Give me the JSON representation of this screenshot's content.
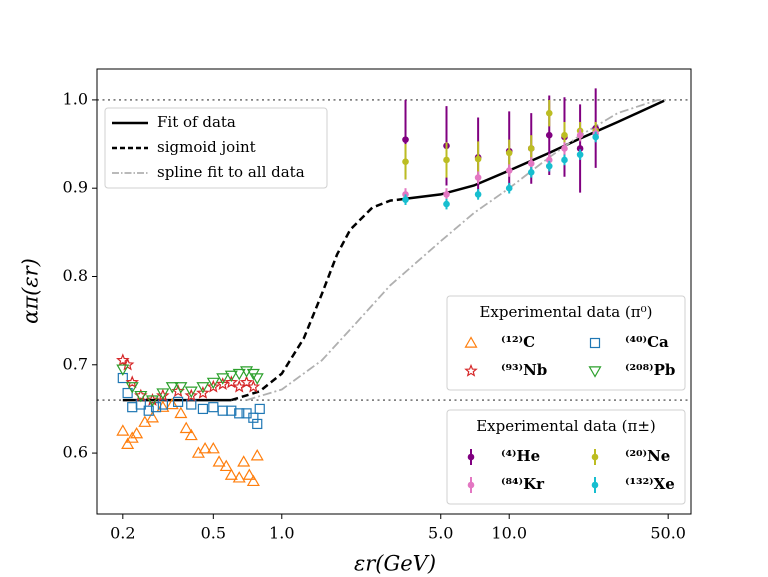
{
  "chart_data": {
    "type": "scatter",
    "x_label": "εr(GeV)",
    "y_label": "απ(εr)",
    "xscale": "log",
    "xlim": [
      0.154,
      63
    ],
    "ylim": [
      0.531,
      1.035
    ],
    "xticks": [
      0.2,
      0.5,
      {
        "value": 1,
        "label": "1.0"
      },
      {
        "value": 5,
        "label": "5.0"
      },
      {
        "value": 10,
        "label": "10.0"
      },
      {
        "value": 50,
        "label": "50.0"
      }
    ],
    "yticks": [
      0.6,
      0.7,
      0.8,
      0.9,
      {
        "value": 1,
        "label": "1.0"
      }
    ],
    "hlines": [
      1.0,
      0.66
    ],
    "fits": {
      "series": [
        {
          "name": "Fit of data",
          "color": "#000000",
          "dash": "solid",
          "x": [
            0.2,
            0.4,
            0.6,
            2.0,
            3.5,
            5,
            7,
            10,
            15,
            20,
            30,
            48
          ],
          "values": [
            0.66,
            0.66,
            0.66,
            null,
            0.888,
            0.893,
            0.903,
            0.92,
            0.94,
            0.955,
            0.975,
            0.999
          ]
        },
        {
          "name": "sigmoid joint",
          "color": "#000000",
          "dash": "dashed",
          "x": [
            0.6,
            0.8,
            1.0,
            1.25,
            1.5,
            1.75,
            2.0,
            2.5,
            3.0,
            3.5
          ],
          "values": [
            0.66,
            0.67,
            0.69,
            0.73,
            0.78,
            0.825,
            0.853,
            0.878,
            0.886,
            0.888
          ]
        },
        {
          "name": "spline fit to all data",
          "color": "#b0b0b0",
          "dash": "dashdot",
          "x": [
            0.7,
            1.0,
            1.5,
            2.0,
            3.0,
            5.0,
            7.0,
            10,
            15,
            20,
            30,
            45,
            50
          ],
          "values": [
            0.66,
            0.672,
            0.705,
            0.74,
            0.79,
            0.84,
            0.872,
            0.9,
            0.935,
            0.958,
            0.985,
            1.0,
            1.0
          ]
        }
      ]
    },
    "pi0": {
      "title": "Experimental data (π⁰)",
      "series": [
        {
          "name": "⁽¹²⁾C",
          "color": "#ff7f0e",
          "marker": "triangle-up",
          "x": [
            0.2,
            0.21,
            0.22,
            0.23,
            0.25,
            0.27,
            0.3,
            0.33,
            0.36,
            0.38,
            0.4,
            0.43,
            0.46,
            0.5,
            0.53,
            0.57,
            0.6,
            0.65,
            0.68,
            0.72,
            0.75,
            0.78
          ],
          "values": [
            0.625,
            0.61,
            0.617,
            0.622,
            0.635,
            0.64,
            0.652,
            0.655,
            0.645,
            0.628,
            0.62,
            0.6,
            0.605,
            0.605,
            0.59,
            0.585,
            0.575,
            0.572,
            0.59,
            0.575,
            0.568,
            0.597
          ]
        },
        {
          "name": "⁽⁴⁰⁾Ca",
          "color": "#1f77b4",
          "marker": "square",
          "x": [
            0.2,
            0.21,
            0.22,
            0.24,
            0.26,
            0.28,
            0.3,
            0.35,
            0.4,
            0.45,
            0.5,
            0.55,
            0.6,
            0.65,
            0.7,
            0.75,
            0.78,
            0.8
          ],
          "values": [
            0.685,
            0.668,
            0.652,
            0.655,
            0.648,
            0.652,
            0.655,
            0.658,
            0.655,
            0.65,
            0.652,
            0.648,
            0.648,
            0.645,
            0.645,
            0.64,
            0.633,
            0.65
          ]
        },
        {
          "name": "⁽⁹³⁾Nb",
          "color": "#d62728",
          "marker": "star",
          "x": [
            0.2,
            0.21,
            0.22,
            0.24,
            0.27,
            0.3,
            0.35,
            0.4,
            0.45,
            0.5,
            0.55,
            0.6,
            0.65,
            0.7,
            0.75
          ],
          "values": [
            0.705,
            0.7,
            0.68,
            0.665,
            0.66,
            0.665,
            0.67,
            0.665,
            0.668,
            0.675,
            0.678,
            0.68,
            0.675,
            0.68,
            0.675
          ]
        },
        {
          "name": "⁽²⁰⁸⁾Pb",
          "color": "#2ca02c",
          "marker": "triangle-down",
          "x": [
            0.2,
            0.22,
            0.24,
            0.27,
            0.3,
            0.33,
            0.36,
            0.4,
            0.45,
            0.5,
            0.55,
            0.6,
            0.65,
            0.7,
            0.75,
            0.78
          ],
          "values": [
            0.695,
            0.675,
            0.665,
            0.66,
            0.668,
            0.675,
            0.675,
            0.67,
            0.675,
            0.68,
            0.685,
            0.688,
            0.69,
            0.693,
            0.69,
            0.685
          ]
        }
      ]
    },
    "pipm": {
      "title": "Experimental data (π±)",
      "series": [
        {
          "name": "⁽⁴⁾He",
          "color": "#800080",
          "marker": "circle",
          "x": [
            3.5,
            5.3,
            7.3,
            10,
            12.5,
            15,
            17.5,
            20.5,
            24
          ],
          "values": [
            0.955,
            0.948,
            0.935,
            0.942,
            0.945,
            0.96,
            0.958,
            0.945,
            0.968
          ],
          "errors": [
            0.045,
            0.045,
            0.045,
            0.045,
            0.04,
            0.045,
            0.045,
            0.05,
            0.045
          ]
        },
        {
          "name": "⁽²⁰⁾Ne",
          "color": "#bcbd22",
          "marker": "circle",
          "x": [
            3.5,
            5.3,
            7.3,
            10,
            12.5,
            15,
            17.5,
            20.5,
            24
          ],
          "values": [
            0.93,
            0.932,
            0.933,
            0.94,
            0.945,
            0.985,
            0.96,
            0.965,
            0.965
          ],
          "errors": [
            0.02,
            0.02,
            0.02,
            0.015,
            0.015,
            0.015,
            0.015,
            0.01,
            0.01
          ]
        },
        {
          "name": "⁽⁸⁴⁾Kr",
          "color": "#e377c2",
          "marker": "circle",
          "x": [
            3.5,
            5.3,
            7.3,
            10,
            12.5,
            15,
            17.5,
            20.5,
            24
          ],
          "values": [
            0.893,
            0.893,
            0.912,
            0.92,
            0.928,
            0.932,
            0.945,
            0.96,
            0.962
          ],
          "errors": [
            0.007,
            0.007,
            0.007,
            0.007,
            0.007,
            0.007,
            0.007,
            0.007,
            0.007
          ]
        },
        {
          "name": "⁽¹³²⁾Xe",
          "color": "#17becf",
          "marker": "circle",
          "x": [
            3.5,
            5.3,
            7.3,
            10,
            12.5,
            15,
            17.5,
            20.5,
            24
          ],
          "values": [
            0.887,
            0.882,
            0.893,
            0.9,
            0.918,
            0.925,
            0.932,
            0.938,
            0.958
          ],
          "errors": [
            0.006,
            0.006,
            0.006,
            0.006,
            0.006,
            0.006,
            0.006,
            0.006,
            0.006
          ]
        }
      ]
    }
  }
}
